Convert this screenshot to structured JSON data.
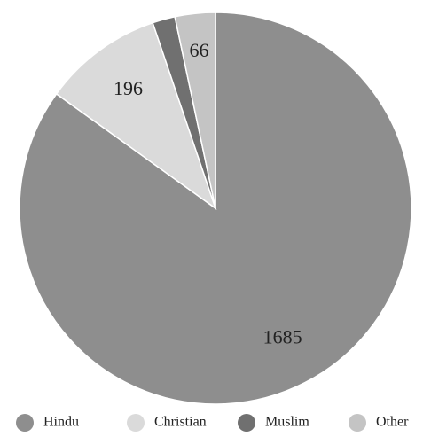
{
  "chart_data": {
    "type": "pie",
    "categories": [
      "Hindu",
      "Christian",
      "Muslim",
      "Other"
    ],
    "values": [
      1685,
      196,
      37,
      66
    ],
    "colors": [
      "#8e8e8e",
      "#dadada",
      "#707070",
      "#c4c4c4"
    ],
    "value_labels": [
      "1685",
      "196",
      null,
      "66"
    ],
    "legend": "bottom"
  }
}
